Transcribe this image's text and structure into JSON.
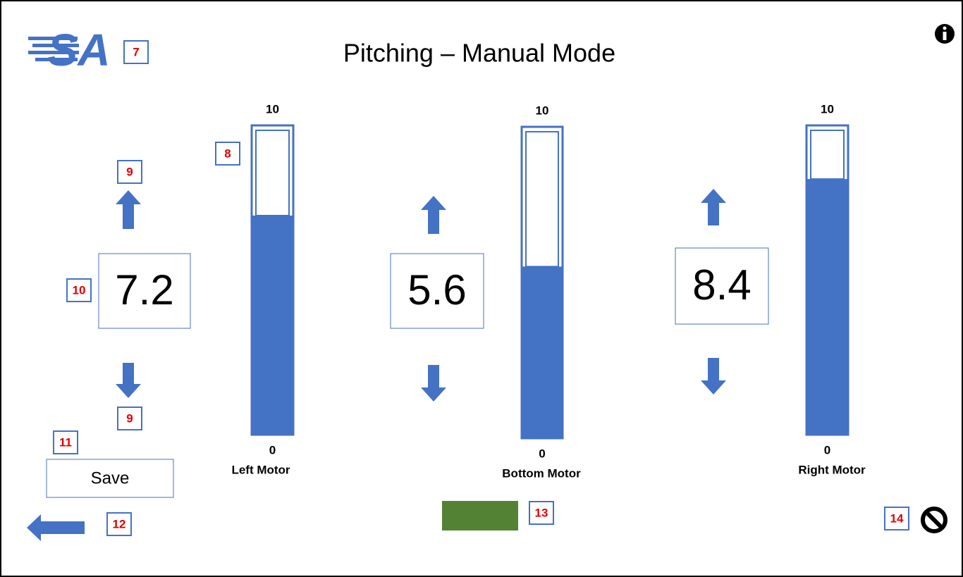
{
  "header": {
    "title": "Pitching – Manual Mode",
    "logo": "SA"
  },
  "motors": [
    {
      "name": "Left Motor",
      "value": 7.2,
      "max": 10,
      "min": 0
    },
    {
      "name": "Bottom Motor",
      "value": 5.6,
      "max": 10,
      "min": 0
    },
    {
      "name": "Right Motor",
      "value": 8.4,
      "max": 10,
      "min": 0
    }
  ],
  "save_button": "Save",
  "annotations": [
    "7",
    "8",
    "9",
    "9",
    "10",
    "11",
    "12",
    "13",
    "14"
  ]
}
